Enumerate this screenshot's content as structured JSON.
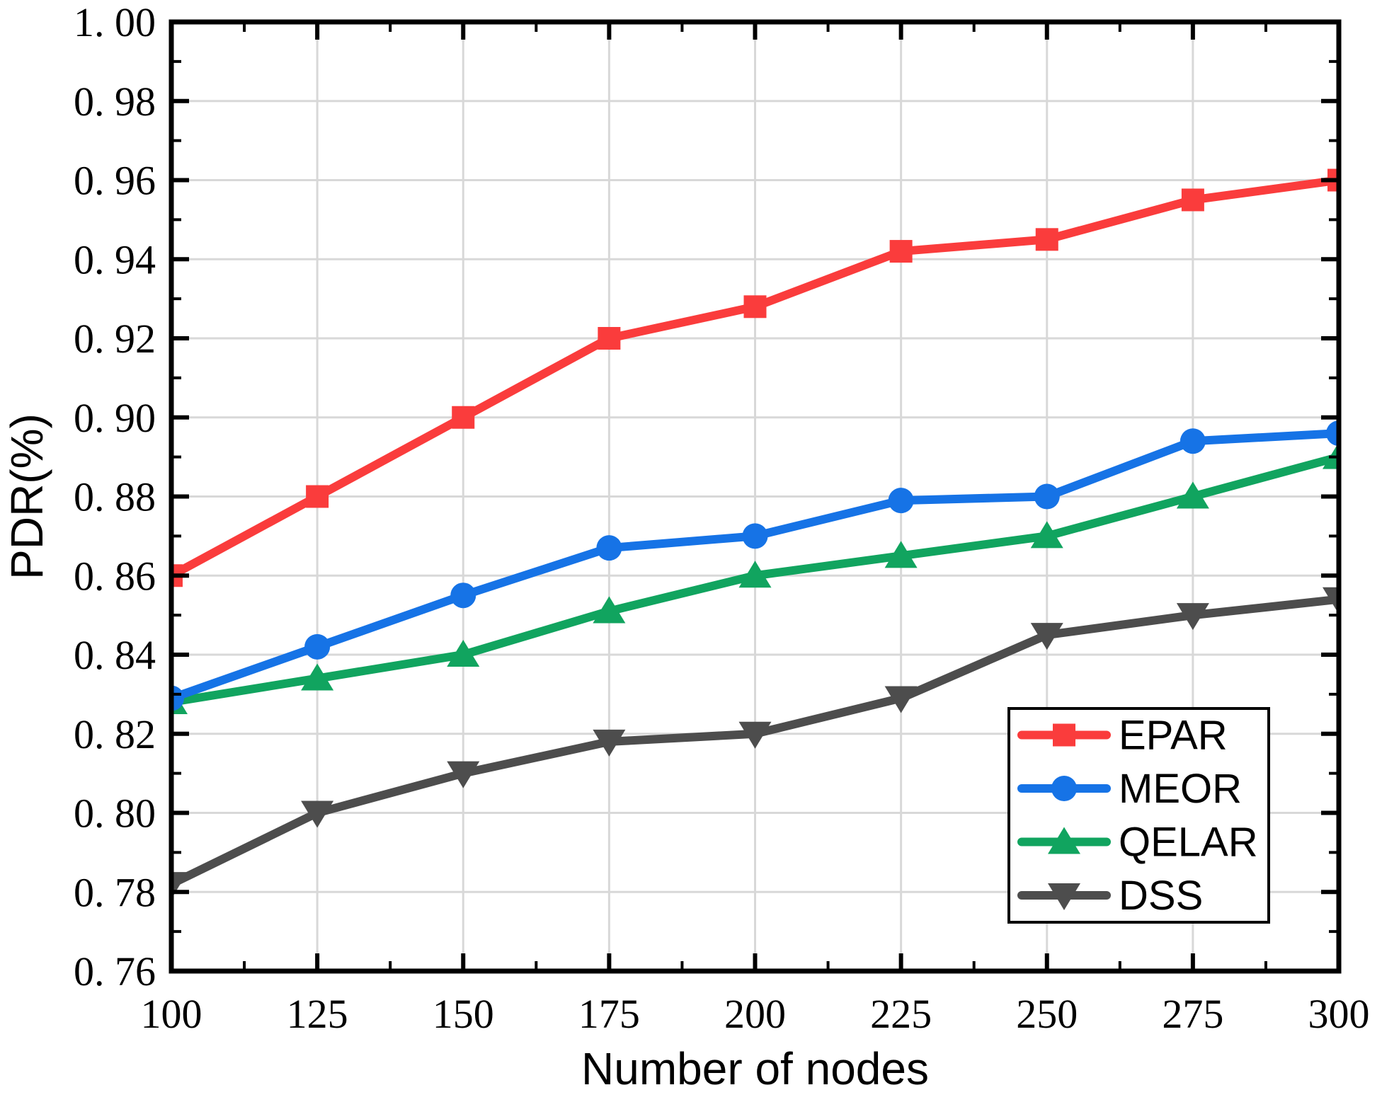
{
  "chart_data": {
    "type": "line",
    "title": "",
    "xlabel": "Number of nodes",
    "ylabel": "PDR(%)",
    "x": [
      100,
      125,
      150,
      175,
      200,
      225,
      250,
      275,
      300
    ],
    "xlim": [
      100,
      300
    ],
    "ylim": [
      0.76,
      1.0
    ],
    "x_major_step": 25,
    "x_minor_step": 12.5,
    "y_major_step": 0.02,
    "y_minor_step": 0.01,
    "x_tick_labels": [
      "100",
      "125",
      "150",
      "175",
      "200",
      "225",
      "250",
      "275",
      "300"
    ],
    "y_ticks": [
      0.76,
      0.78,
      0.8,
      0.82,
      0.84,
      0.86,
      0.88,
      0.9,
      0.92,
      0.94,
      0.96,
      0.98,
      1.0
    ],
    "y_tick_labels": [
      "0. 76",
      "0. 78",
      "0. 80",
      "0. 82",
      "0. 84",
      "0. 86",
      "0. 88",
      "0. 90",
      "0. 92",
      "0. 94",
      "0. 96",
      "0. 98",
      "1. 00"
    ],
    "grid": true,
    "grid_color": "#d8d8d8",
    "axis_color": "#000000",
    "background_color": "#ffffff",
    "legend_position": "lower-right-inside",
    "legend_entries": [
      "EPAR",
      "MEOR",
      "QELAR",
      "DSS"
    ],
    "series": [
      {
        "name": "EPAR",
        "color": "#fa3c3c",
        "marker": "square",
        "values": [
          0.86,
          0.88,
          0.9,
          0.92,
          0.928,
          0.942,
          0.945,
          0.955,
          0.96
        ]
      },
      {
        "name": "MEOR",
        "color": "#1673e6",
        "marker": "circle",
        "values": [
          0.829,
          0.842,
          0.855,
          0.867,
          0.87,
          0.879,
          0.88,
          0.894,
          0.896
        ]
      },
      {
        "name": "QELAR",
        "color": "#11a45f",
        "marker": "triangle-up",
        "values": [
          0.828,
          0.834,
          0.84,
          0.851,
          0.86,
          0.865,
          0.87,
          0.88,
          0.89
        ]
      },
      {
        "name": "DSS",
        "color": "#4d4d4d",
        "marker": "triangle-down",
        "values": [
          0.782,
          0.8,
          0.81,
          0.818,
          0.82,
          0.829,
          0.845,
          0.85,
          0.854
        ]
      }
    ]
  }
}
